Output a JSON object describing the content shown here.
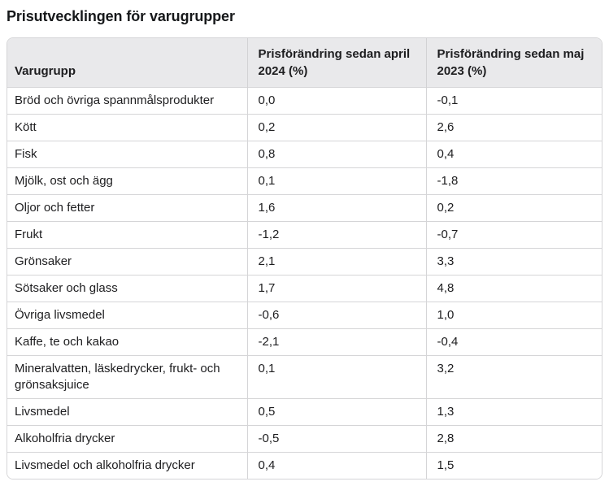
{
  "page": {
    "title": "Prisutvecklingen för varugrupper"
  },
  "table": {
    "columns": [
      "Varugrupp",
      "Prisförändring sedan april\n2024 (%)",
      "Prisförändring sedan maj\n2023 (%)"
    ],
    "rows": [
      {
        "varugrupp": "Bröd och övriga spannmålsprodukter",
        "sedan_april_2024": "0,0",
        "sedan_maj_2023": "-0,1"
      },
      {
        "varugrupp": "Kött",
        "sedan_april_2024": "0,2",
        "sedan_maj_2023": "2,6"
      },
      {
        "varugrupp": "Fisk",
        "sedan_april_2024": "0,8",
        "sedan_maj_2023": "0,4"
      },
      {
        "varugrupp": "Mjölk, ost och ägg",
        "sedan_april_2024": "0,1",
        "sedan_maj_2023": "-1,8"
      },
      {
        "varugrupp": "Oljor och fetter",
        "sedan_april_2024": "1,6",
        "sedan_maj_2023": "0,2"
      },
      {
        "varugrupp": "Frukt",
        "sedan_april_2024": "-1,2",
        "sedan_maj_2023": "-0,7"
      },
      {
        "varugrupp": "Grönsaker",
        "sedan_april_2024": "2,1",
        "sedan_maj_2023": "3,3"
      },
      {
        "varugrupp": "Sötsaker och glass",
        "sedan_april_2024": "1,7",
        "sedan_maj_2023": "4,8"
      },
      {
        "varugrupp": "Övriga livsmedel",
        "sedan_april_2024": "-0,6",
        "sedan_maj_2023": "1,0"
      },
      {
        "varugrupp": "Kaffe, te och kakao",
        "sedan_april_2024": "-2,1",
        "sedan_maj_2023": "-0,4"
      },
      {
        "varugrupp": "Mineralvatten, läskedrycker, frukt- och grönsaksjuice",
        "sedan_april_2024": "0,1",
        "sedan_maj_2023": "3,2"
      },
      {
        "varugrupp": "Livsmedel",
        "sedan_april_2024": "0,5",
        "sedan_maj_2023": "1,3"
      },
      {
        "varugrupp": "Alkoholfria drycker",
        "sedan_april_2024": "-0,5",
        "sedan_maj_2023": "2,8"
      },
      {
        "varugrupp": "Livsmedel och alkoholfria drycker",
        "sedan_april_2024": "0,4",
        "sedan_maj_2023": "1,5"
      }
    ]
  },
  "colors": {
    "header_background": "#e9e9eb",
    "border": "#d5d5d7",
    "text": "#1d1d1f",
    "background": "#ffffff"
  }
}
